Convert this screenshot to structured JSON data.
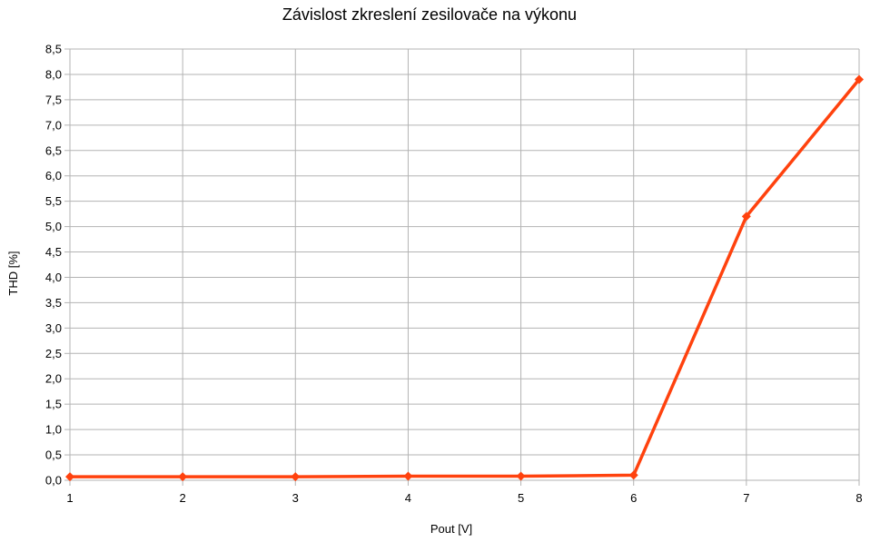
{
  "chart_data": {
    "type": "line",
    "title": "Závislost zkreslení zesilovače na výkonu",
    "xlabel": "Pout [V]",
    "ylabel": "THD [%]",
    "x": [
      1,
      2,
      3,
      4,
      5,
      6,
      7,
      8
    ],
    "x_tick_labels": [
      "1",
      "2",
      "3",
      "4",
      "5",
      "6",
      "7",
      "8"
    ],
    "xlim": [
      1,
      8
    ],
    "ylim": [
      0,
      8.5
    ],
    "y_tick_labels": [
      "0,0",
      "0,5",
      "1,0",
      "1,5",
      "2,0",
      "2,5",
      "3,0",
      "3,5",
      "4,0",
      "4,5",
      "5,0",
      "5,5",
      "6,0",
      "6,5",
      "7,0",
      "7,5",
      "8,0",
      "8,5"
    ],
    "grid": true,
    "legend": "none",
    "series": [
      {
        "values": [
          0.07,
          0.07,
          0.07,
          0.08,
          0.08,
          0.1,
          5.2,
          7.9
        ],
        "color": "#ff420e",
        "marker": "diamond"
      }
    ]
  }
}
